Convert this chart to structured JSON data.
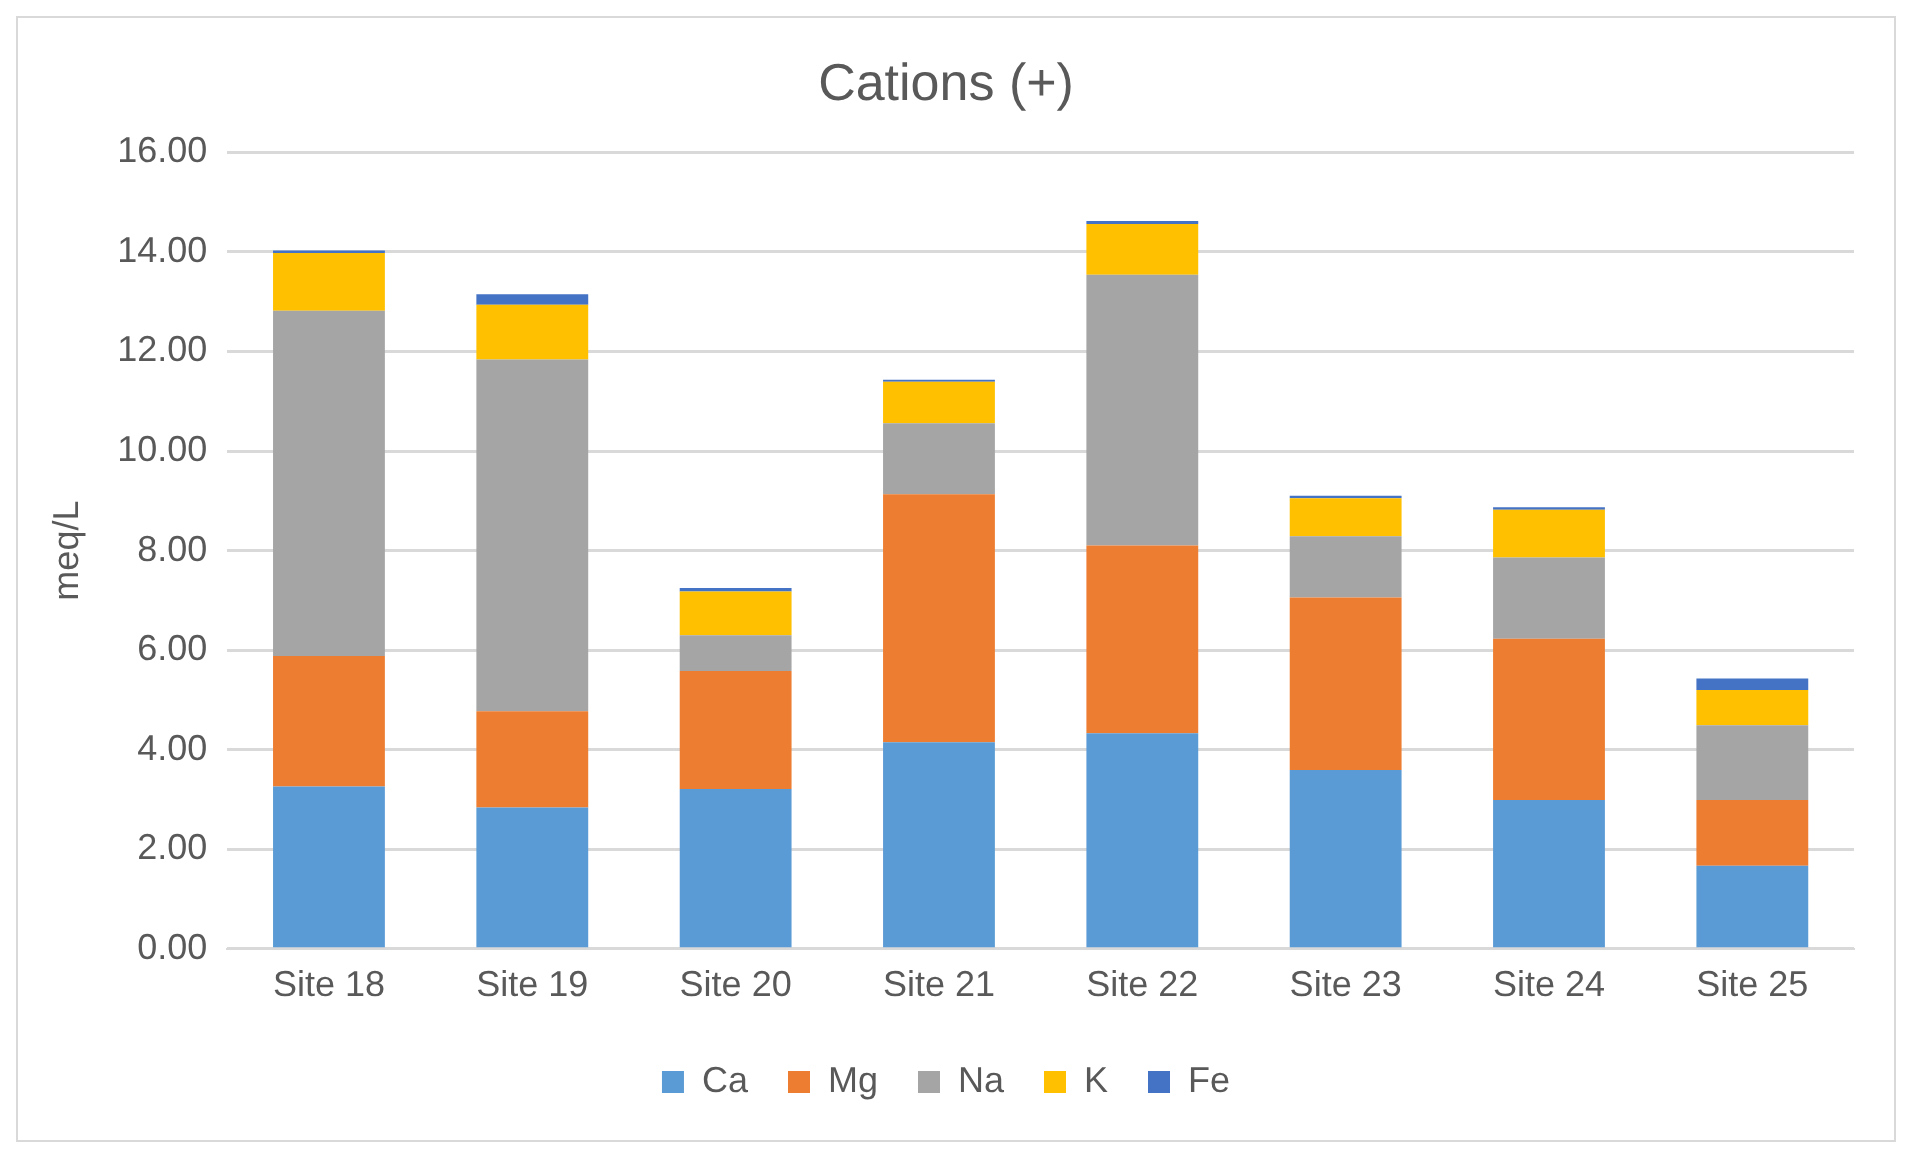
{
  "chart_data": {
    "type": "bar",
    "title": "Cations (+)",
    "ylabel": "meq/L",
    "stacked": true,
    "grid": "y",
    "legend": "bottom",
    "categories": [
      "Site 18",
      "Site 19",
      "Site 20",
      "Site 21",
      "Site 22",
      "Site 23",
      "Site 24",
      "Site 25"
    ],
    "ylim": [
      0,
      16
    ],
    "yticks": [
      {
        "value": 0,
        "label": "0.00"
      },
      {
        "value": 2,
        "label": "2.00"
      },
      {
        "value": 4,
        "label": "4.00"
      },
      {
        "value": 6,
        "label": "6.00"
      },
      {
        "value": 8,
        "label": "8.00"
      },
      {
        "value": 10,
        "label": "10.00"
      },
      {
        "value": 12,
        "label": "12.00"
      },
      {
        "value": 14,
        "label": "14.00"
      },
      {
        "value": 16,
        "label": "16.00"
      }
    ],
    "series": [
      {
        "name": "Ca",
        "color": "#5b9bd5",
        "values": [
          3.26,
          2.84,
          3.21,
          4.15,
          4.33,
          3.59,
          2.99,
          1.67
        ]
      },
      {
        "name": "Mg",
        "color": "#ed7d31",
        "values": [
          2.62,
          1.93,
          2.37,
          4.98,
          3.77,
          3.47,
          3.24,
          1.32
        ]
      },
      {
        "name": "Na",
        "color": "#a5a5a5",
        "values": [
          6.94,
          7.07,
          0.72,
          1.43,
          5.44,
          1.23,
          1.63,
          1.5
        ]
      },
      {
        "name": "K",
        "color": "#ffc000",
        "values": [
          1.16,
          1.1,
          0.88,
          0.83,
          1.02,
          0.76,
          0.96,
          0.71
        ]
      },
      {
        "name": "Fe",
        "color": "#4472c4",
        "values": [
          0.05,
          0.21,
          0.07,
          0.04,
          0.06,
          0.05,
          0.05,
          0.23
        ]
      }
    ]
  }
}
